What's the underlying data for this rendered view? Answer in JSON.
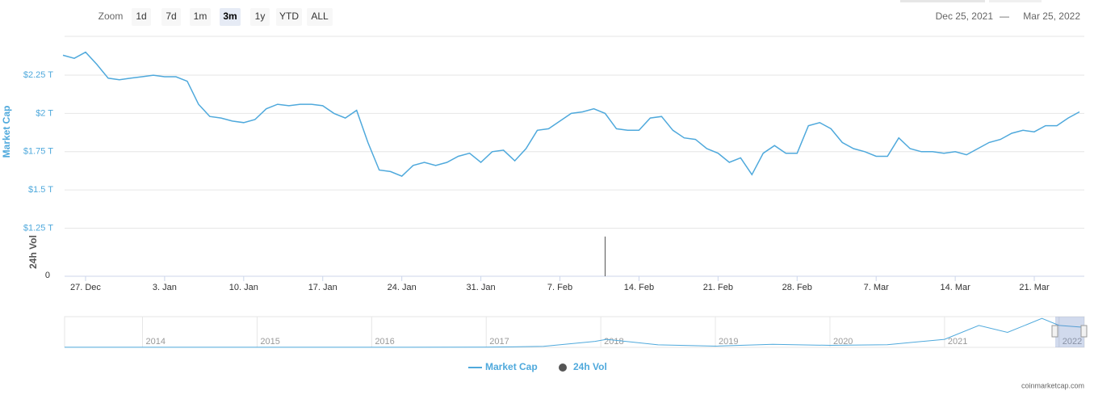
{
  "chart_data": {
    "type": "line",
    "y_axis_label": "Market Cap",
    "volume_axis_label": "24h Vol",
    "zoom": {
      "label": "Zoom",
      "buttons": [
        "1d",
        "7d",
        "1m",
        "3m",
        "1y",
        "YTD",
        "ALL"
      ],
      "selected": "3m"
    },
    "range": {
      "from": "Dec 25, 2021",
      "sep": "—",
      "to": "Mar 25, 2022"
    },
    "xlim": [
      "2021-12-25",
      "2022-03-25"
    ],
    "xticks": [
      {
        "value": "2021-12-27",
        "label": "27. Dec"
      },
      {
        "value": "2022-01-03",
        "label": "3. Jan"
      },
      {
        "value": "2022-01-10",
        "label": "10. Jan"
      },
      {
        "value": "2022-01-17",
        "label": "17. Jan"
      },
      {
        "value": "2022-01-24",
        "label": "24. Jan"
      },
      {
        "value": "2022-01-31",
        "label": "31. Jan"
      },
      {
        "value": "2022-02-07",
        "label": "7. Feb"
      },
      {
        "value": "2022-02-14",
        "label": "14. Feb"
      },
      {
        "value": "2022-02-21",
        "label": "21. Feb"
      },
      {
        "value": "2022-02-28",
        "label": "28. Feb"
      },
      {
        "value": "2022-03-07",
        "label": "7. Mar"
      },
      {
        "value": "2022-03-14",
        "label": "14. Mar"
      },
      {
        "value": "2022-03-21",
        "label": "21. Mar"
      }
    ],
    "ylim": [
      1.25,
      2.5
    ],
    "yticks": [
      {
        "value": 1.25,
        "label": "$1.25 T"
      },
      {
        "value": 1.5,
        "label": "$1.5 T"
      },
      {
        "value": 1.75,
        "label": "$1.75 T"
      },
      {
        "value": 2,
        "label": "$2 T"
      },
      {
        "value": 2.25,
        "label": "$2.25 T"
      }
    ],
    "grid": true,
    "x": [
      "2021-12-25",
      "2021-12-26",
      "2021-12-27",
      "2021-12-28",
      "2021-12-29",
      "2021-12-30",
      "2021-12-31",
      "2022-01-01",
      "2022-01-02",
      "2022-01-03",
      "2022-01-04",
      "2022-01-05",
      "2022-01-06",
      "2022-01-07",
      "2022-01-08",
      "2022-01-09",
      "2022-01-10",
      "2022-01-11",
      "2022-01-12",
      "2022-01-13",
      "2022-01-14",
      "2022-01-15",
      "2022-01-16",
      "2022-01-17",
      "2022-01-18",
      "2022-01-19",
      "2022-01-20",
      "2022-01-21",
      "2022-01-22",
      "2022-01-23",
      "2022-01-24",
      "2022-01-25",
      "2022-01-26",
      "2022-01-27",
      "2022-01-28",
      "2022-01-29",
      "2022-01-30",
      "2022-01-31",
      "2022-02-01",
      "2022-02-02",
      "2022-02-03",
      "2022-02-04",
      "2022-02-05",
      "2022-02-06",
      "2022-02-07",
      "2022-02-08",
      "2022-02-09",
      "2022-02-10",
      "2022-02-11",
      "2022-02-12",
      "2022-02-13",
      "2022-02-14",
      "2022-02-15",
      "2022-02-16",
      "2022-02-17",
      "2022-02-18",
      "2022-02-19",
      "2022-02-20",
      "2022-02-21",
      "2022-02-22",
      "2022-02-23",
      "2022-02-24",
      "2022-02-25",
      "2022-02-26",
      "2022-02-27",
      "2022-02-28",
      "2022-03-01",
      "2022-03-02",
      "2022-03-03",
      "2022-03-04",
      "2022-03-05",
      "2022-03-06",
      "2022-03-07",
      "2022-03-08",
      "2022-03-09",
      "2022-03-10",
      "2022-03-11",
      "2022-03-12",
      "2022-03-13",
      "2022-03-14",
      "2022-03-15",
      "2022-03-16",
      "2022-03-17",
      "2022-03-18",
      "2022-03-19",
      "2022-03-20",
      "2022-03-21",
      "2022-03-22",
      "2022-03-23",
      "2022-03-24",
      "2022-03-25"
    ],
    "series": [
      {
        "name": "Market Cap",
        "color": "#4fa9dc",
        "values": [
          2.38,
          2.36,
          2.4,
          2.32,
          2.23,
          2.22,
          2.23,
          2.24,
          2.25,
          2.24,
          2.24,
          2.21,
          2.06,
          1.98,
          1.97,
          1.95,
          1.94,
          1.96,
          2.03,
          2.06,
          2.05,
          2.06,
          2.06,
          2.05,
          2.0,
          1.97,
          2.02,
          1.81,
          1.63,
          1.62,
          1.59,
          1.66,
          1.68,
          1.66,
          1.68,
          1.72,
          1.74,
          1.68,
          1.75,
          1.76,
          1.69,
          1.77,
          1.89,
          1.9,
          1.95,
          2.0,
          2.01,
          2.03,
          2.0,
          1.9,
          1.89,
          1.89,
          1.97,
          1.98,
          1.89,
          1.84,
          1.83,
          1.77,
          1.74,
          1.68,
          1.71,
          1.6,
          1.74,
          1.79,
          1.74,
          1.74,
          1.92,
          1.94,
          1.9,
          1.81,
          1.77,
          1.75,
          1.72,
          1.72,
          1.84,
          1.77,
          1.75,
          1.75,
          1.74,
          1.75,
          1.73,
          1.77,
          1.81,
          1.83,
          1.87,
          1.89,
          1.88,
          1.92,
          1.92,
          1.97,
          2.01
        ]
      }
    ],
    "volume": {
      "name": "24h Vol",
      "color": "#555555",
      "ylim": [
        0,
        1.2
      ],
      "yticks": [
        0
      ],
      "x": [
        "2022-02-11"
      ],
      "values": [
        1
      ]
    },
    "navigator": {
      "xlim": [
        2013.32,
        2022.22
      ],
      "ylim": [
        0,
        3
      ],
      "xticks": [
        2014,
        2015,
        2016,
        2017,
        2018,
        2019,
        2020,
        2021,
        2022
      ],
      "x": [
        2013.32,
        2017.0,
        2017.5,
        2017.95,
        2018.05,
        2018.5,
        2019.0,
        2019.5,
        2020.0,
        2020.5,
        2021.0,
        2021.3,
        2021.55,
        2021.85,
        2022.0,
        2022.22
      ],
      "values": [
        0.01,
        0.02,
        0.1,
        0.6,
        0.8,
        0.25,
        0.12,
        0.3,
        0.2,
        0.27,
        0.8,
        2.2,
        1.5,
        2.9,
        2.2,
        2.0
      ]
    },
    "credit": "coinmarketcap.com"
  }
}
